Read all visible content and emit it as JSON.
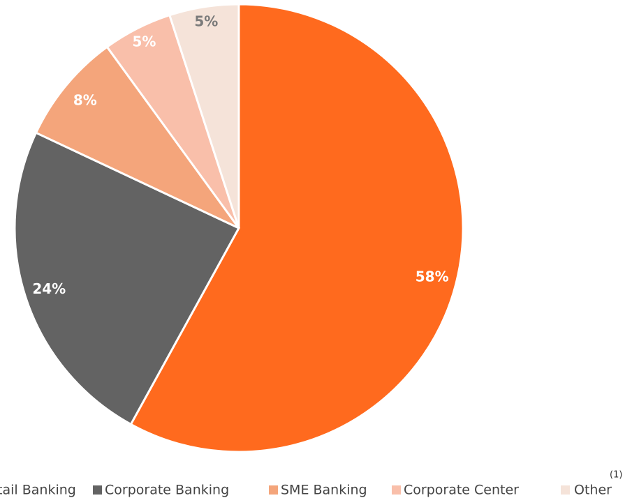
{
  "chart_data": {
    "type": "pie",
    "categories": [
      "Retail Banking",
      "Corporate Banking",
      "SME Banking",
      "Corporate Center",
      "Other"
    ],
    "values": [
      58,
      24,
      8,
      5,
      5
    ],
    "value_labels": [
      "58%",
      "24%",
      "8%",
      "5%",
      "5%"
    ],
    "colors": [
      "#ff6a1e",
      "#636363",
      "#f4a57b",
      "#f9bfaa",
      "#f5e3d9"
    ],
    "label_colors": [
      "#ffffff",
      "#ffffff",
      "#ffffff",
      "#ffffff",
      "#7a7a7a"
    ],
    "legend": "bottom",
    "note": "(1)"
  }
}
